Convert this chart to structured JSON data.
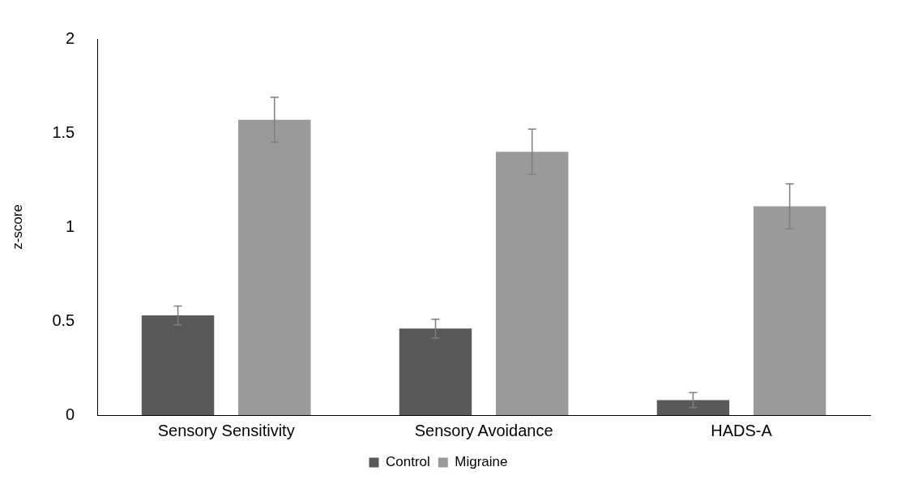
{
  "chart_data": {
    "type": "bar",
    "ylabel": "z-score",
    "categories": [
      "Sensory Sensitivity",
      "Sensory Avoidance",
      "HADS-A"
    ],
    "series": [
      {
        "name": "Control",
        "color": "#595959",
        "values": [
          0.53,
          0.46,
          0.08
        ],
        "errors": [
          0.05,
          0.05,
          0.04
        ]
      },
      {
        "name": "Migraine",
        "color": "#9a9a9a",
        "values": [
          1.57,
          1.4,
          1.11
        ],
        "errors": [
          0.12,
          0.12,
          0.12
        ]
      }
    ],
    "ylim": [
      0,
      2
    ],
    "yticks": [
      0,
      0.5,
      1,
      1.5,
      2
    ],
    "grid": false,
    "legend": "bottom"
  }
}
